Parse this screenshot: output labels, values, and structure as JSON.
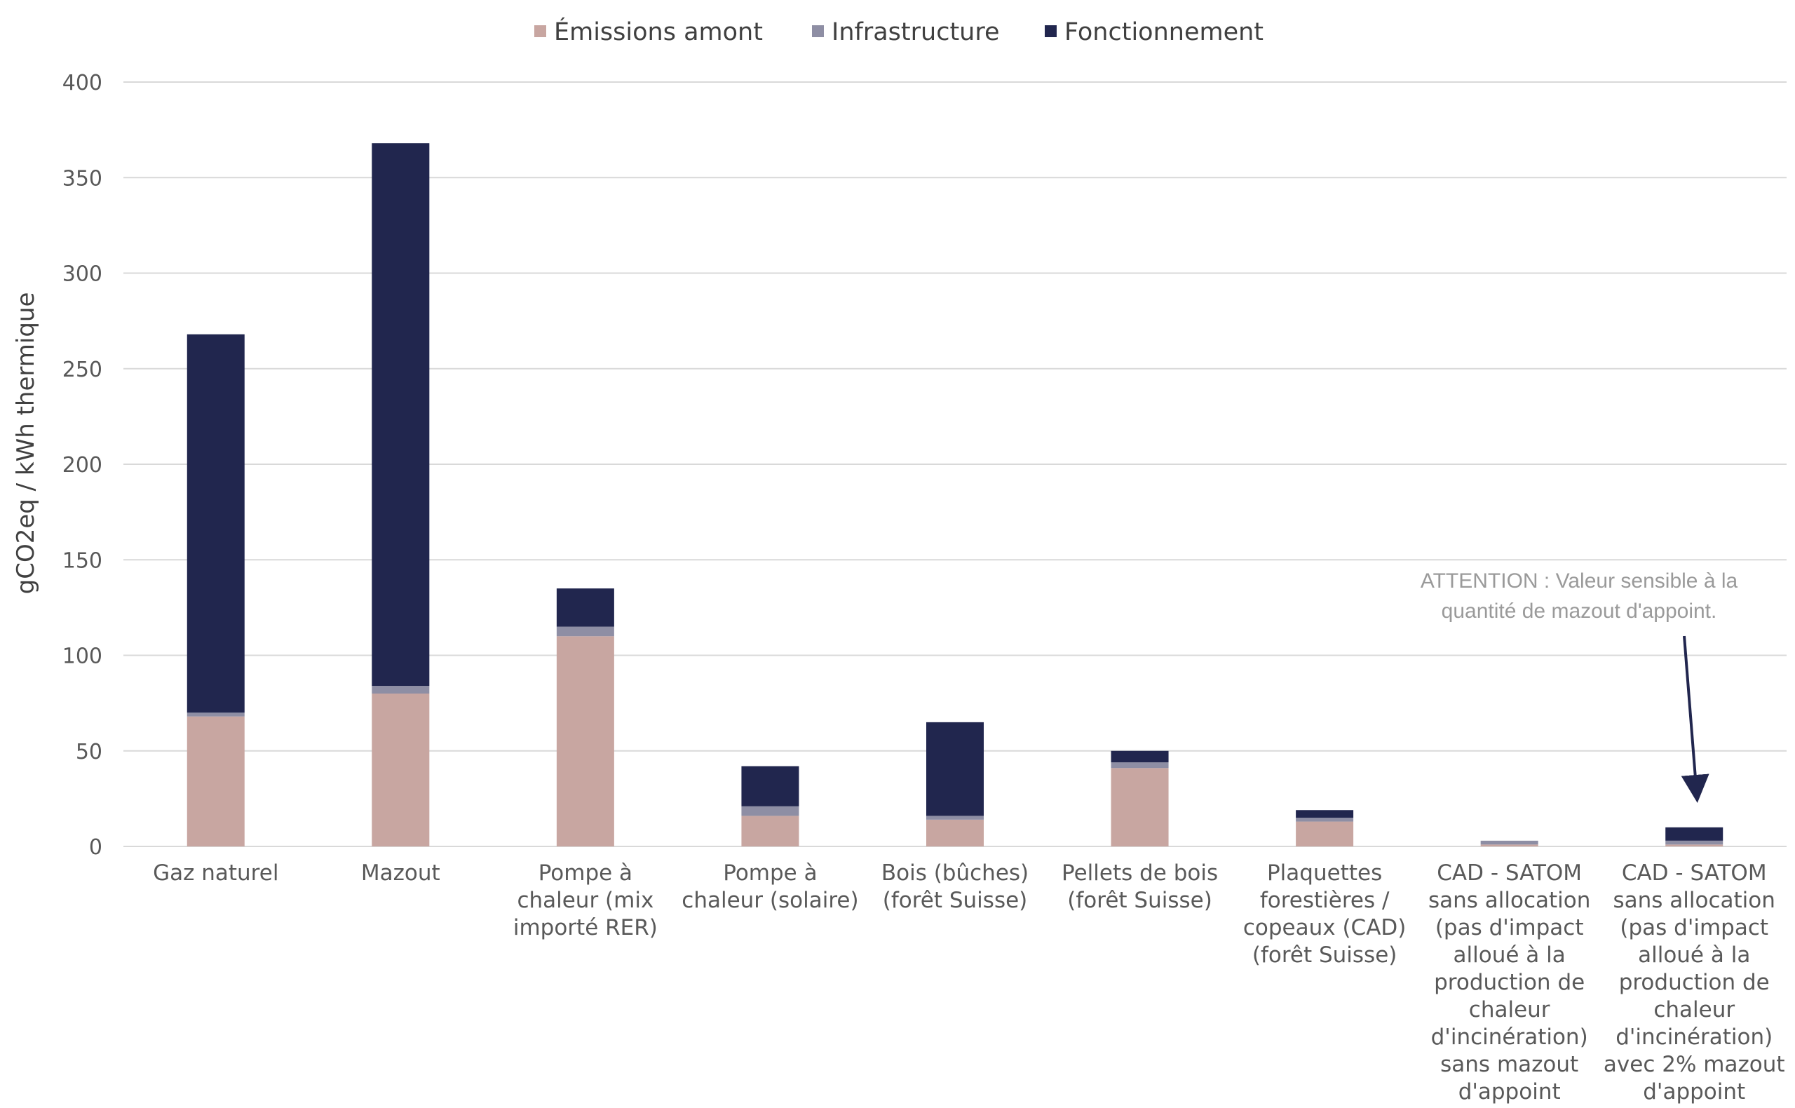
{
  "chart_data": {
    "type": "bar",
    "stacked": true,
    "title": "",
    "xlabel": "",
    "ylabel": "gCO2eq / kWh thermique",
    "ylim": [
      0,
      400
    ],
    "yticks": [
      0,
      50,
      100,
      150,
      200,
      250,
      300,
      350,
      400
    ],
    "grid": true,
    "legend_position": "top-center",
    "categories": [
      "Gaz naturel",
      "Mazout",
      "Pompe à chaleur (mix importé RER)",
      "Pompe à chaleur (solaire)",
      "Bois (bûches) (forêt Suisse)",
      "Pellets de bois (forêt Suisse)",
      "Plaquettes forestières / copeaux (CAD) (forêt Suisse)",
      "CAD - SATOM sans allocation (pas d'impact alloué à la production de chaleur d'incinération) sans mazout d'appoint",
      "CAD - SATOM sans allocation (pas d'impact alloué à la production de chaleur d'incinération) avec 2% mazout d'appoint"
    ],
    "category_lines": [
      [
        "Gaz naturel"
      ],
      [
        "Mazout"
      ],
      [
        "Pompe à",
        "chaleur (mix",
        "importé RER)"
      ],
      [
        "Pompe à",
        "chaleur (solaire)"
      ],
      [
        "Bois (bûches)",
        "(forêt Suisse)"
      ],
      [
        "Pellets de bois",
        "(forêt Suisse)"
      ],
      [
        "Plaquettes",
        "forestières /",
        "copeaux (CAD)",
        "(forêt Suisse)"
      ],
      [
        "CAD - SATOM",
        "sans allocation",
        "(pas d'impact",
        "alloué à la",
        "production de",
        "chaleur",
        "d'incinération)",
        "sans mazout",
        "d'appoint"
      ],
      [
        "CAD - SATOM",
        "sans allocation",
        "(pas d'impact",
        "alloué à la",
        "production de",
        "chaleur",
        "d'incinération)",
        "avec 2% mazout",
        "d'appoint"
      ]
    ],
    "series": [
      {
        "name": "Émissions amont",
        "color": "#c8a6a1",
        "values": [
          68,
          80,
          110,
          16,
          14,
          41,
          13,
          1,
          1
        ]
      },
      {
        "name": "Infrastructure",
        "color": "#8e8ea4",
        "values": [
          2,
          4,
          5,
          5,
          2,
          3,
          2,
          2,
          2
        ]
      },
      {
        "name": "Fonctionnement",
        "color": "#21264e",
        "values": [
          198,
          284,
          20,
          21,
          49,
          6,
          4,
          0,
          7
        ]
      }
    ],
    "annotation": {
      "lines": [
        "ATTENTION : Valeur sensible à la",
        "quantité de mazout d'appoint."
      ],
      "points_to_category": 8
    }
  }
}
